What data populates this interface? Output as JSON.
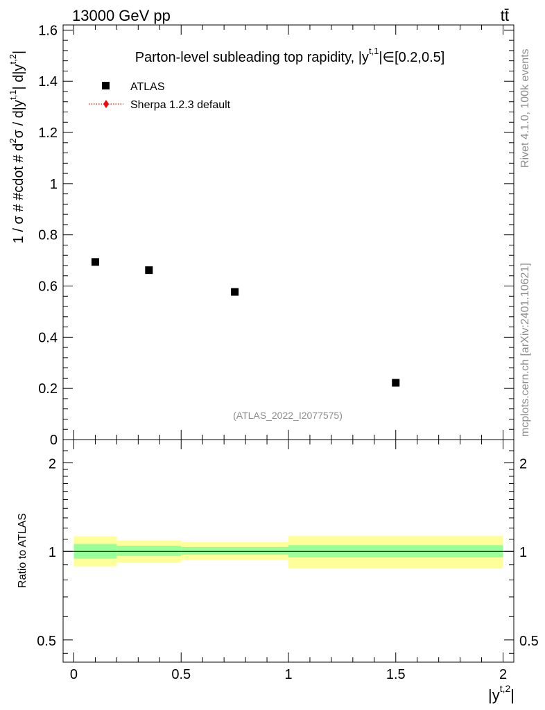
{
  "header": {
    "energy_label": "13000 GeV pp",
    "process_label": "tt̄"
  },
  "side_labels": {
    "rivet": "Rivet 4.1.0,  100k events",
    "mcplots": "mcplots.cern.ch [arXiv:2401.10621]"
  },
  "colors": {
    "data_marker": "#000000",
    "mc_line": "#ff0000",
    "band_inner": "#99ff99",
    "band_outer": "#ffff99"
  },
  "chart_data": [
    {
      "type": "scatter",
      "title": "Parton-level subleading top rapidity, |y^{t,1}| ∈ [0.2,0.5]",
      "title_main": "Parton-level subleading top rapidity, |y",
      "title_sup": "t,1",
      "title_tail": "|∈[0.2,0.5]",
      "watermark": "(ATLAS_2022_I2077575)",
      "ylabel": "1 / σ # #cdot # d²σ / d|y^{t,1}| d|y^{t,2}|",
      "ylabel_parts": {
        "a": "1 / σ # #cdot # d",
        "b": "2",
        "c": "σ / d|y",
        "d": "t,1",
        "e": "| d|y",
        "f": "t,2",
        "g": "|"
      },
      "xlim": [
        -0.05,
        2.05
      ],
      "ylim": [
        0,
        1.62
      ],
      "y_ticks": [
        0,
        0.2,
        0.4,
        0.6,
        0.8,
        1,
        1.2,
        1.4,
        1.6
      ],
      "y_tick_labels": [
        "0",
        "0.2",
        "0.4",
        "0.6",
        "0.8",
        "1",
        "1.2",
        "1.4",
        "1.6"
      ],
      "legend": [
        {
          "label": "ATLAS",
          "style": "square-marker"
        },
        {
          "label": "Sherpa 1.2.3 default",
          "style": "red-dotted-diamond"
        }
      ],
      "series": [
        {
          "name": "ATLAS",
          "x": [
            0.1,
            0.35,
            0.75,
            1.5
          ],
          "y": [
            0.694,
            0.662,
            0.577,
            0.222
          ],
          "x_bins": [
            [
              0,
              0.2
            ],
            [
              0.2,
              0.5
            ],
            [
              0.5,
              1.0
            ],
            [
              1.0,
              2.0
            ]
          ]
        }
      ]
    },
    {
      "type": "area",
      "ylabel": "Ratio to ATLAS",
      "xlabel": "|y^{t,2}|",
      "xlabel_main": "|y",
      "xlabel_sup": "t,2",
      "xlabel_tail": "|",
      "xlim": [
        -0.05,
        2.05
      ],
      "ylim_log": [
        0.42,
        2.4
      ],
      "x_ticks": [
        0,
        0.5,
        1,
        1.5,
        2
      ],
      "x_tick_labels": [
        "0",
        "0.5",
        "1",
        "1.5",
        "2"
      ],
      "y_ticks": [
        0.5,
        1,
        2
      ],
      "y_tick_labels": [
        "0.5",
        "1",
        "2"
      ],
      "reference_line": 1,
      "bins": [
        [
          0,
          0.2
        ],
        [
          0.2,
          0.5
        ],
        [
          0.5,
          1.0
        ],
        [
          1.0,
          2.0
        ]
      ],
      "band_stat": [
        [
          0.945,
          1.06
        ],
        [
          0.965,
          1.045
        ],
        [
          0.975,
          1.035
        ],
        [
          0.955,
          1.05
        ]
      ],
      "band_total": [
        [
          0.89,
          1.125
        ],
        [
          0.915,
          1.09
        ],
        [
          0.935,
          1.075
        ],
        [
          0.875,
          1.13
        ]
      ]
    }
  ]
}
